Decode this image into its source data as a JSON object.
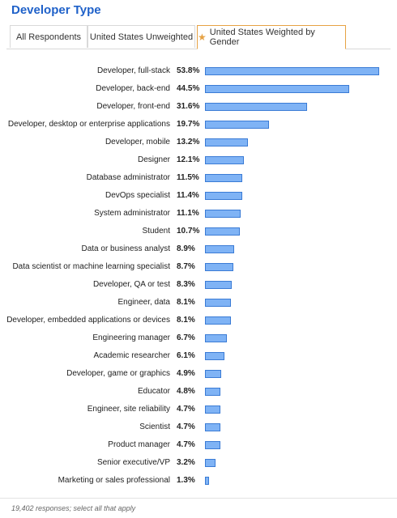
{
  "header": {
    "title": "Developer Type"
  },
  "tabs": [
    {
      "label": "All Respondents",
      "active": false
    },
    {
      "label": "United States Unweighted",
      "active": false
    },
    {
      "label": "United States Weighted by Gender",
      "active": true,
      "icon": "star-icon"
    }
  ],
  "colors": {
    "accent": "#1f61c9",
    "bar_fill": "#7fb3f5",
    "bar_border": "#3a7bd5",
    "active_tab": "#e6a244"
  },
  "chart_data": {
    "type": "bar",
    "orientation": "horizontal",
    "max_value": 53.8,
    "categories": [
      "Developer, full-stack",
      "Developer, back-end",
      "Developer, front-end",
      "Developer, desktop or enterprise applications",
      "Developer, mobile",
      "Designer",
      "Database administrator",
      "DevOps specialist",
      "System administrator",
      "Student",
      "Data or business analyst",
      "Data scientist or machine learning specialist",
      "Developer, QA or test",
      "Engineer, data",
      "Developer, embedded applications or devices",
      "Engineering manager",
      "Academic researcher",
      "Developer, game or graphics",
      "Educator",
      "Engineer, site reliability",
      "Scientist",
      "Product manager",
      "Senior executive/VP",
      "Marketing or sales professional"
    ],
    "values": [
      53.8,
      44.5,
      31.6,
      19.7,
      13.2,
      12.1,
      11.5,
      11.4,
      11.1,
      10.7,
      8.9,
      8.7,
      8.3,
      8.1,
      8.1,
      6.7,
      6.1,
      4.9,
      4.8,
      4.7,
      4.7,
      4.7,
      3.2,
      1.3
    ],
    "value_labels": [
      "53.8%",
      "44.5%",
      "31.6%",
      "19.7%",
      "13.2%",
      "12.1%",
      "11.5%",
      "11.4%",
      "11.1%",
      "10.7%",
      "8.9%",
      "8.7%",
      "8.3%",
      "8.1%",
      "8.1%",
      "6.7%",
      "6.1%",
      "4.9%",
      "4.8%",
      "4.7%",
      "4.7%",
      "4.7%",
      "3.2%",
      "1.3%"
    ]
  },
  "footer": {
    "note": "19,402 responses; select all that apply"
  }
}
